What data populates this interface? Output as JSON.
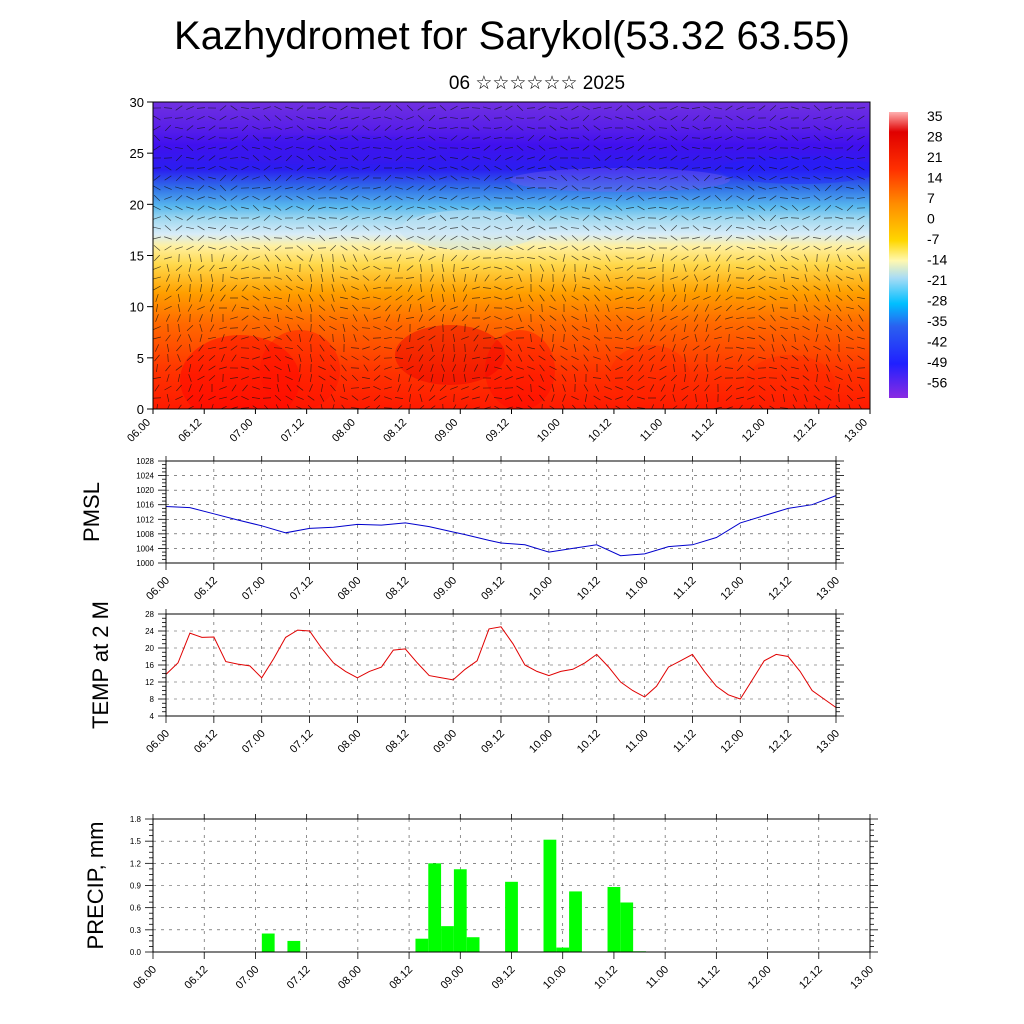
{
  "title": "Kazhydromet for Sarykol(53.32 63.55)",
  "subtitle": "06 ☆☆☆☆☆☆ 2025",
  "time_labels": [
    "06.00",
    "06.12",
    "07.00",
    "07.12",
    "08.00",
    "08.12",
    "09.00",
    "09.12",
    "10.00",
    "10.12",
    "11.00",
    "11.12",
    "12.00",
    "12.12",
    "13.00"
  ],
  "chart_data": [
    {
      "type": "heatmap",
      "title": "",
      "ylim": [
        0,
        30
      ],
      "y_ticks": [
        "0",
        "5",
        "10",
        "15",
        "20",
        "25",
        "30"
      ],
      "colorbar_labels": [
        "35",
        "28",
        "21",
        "14",
        "7",
        "0",
        "-7",
        "-14",
        "-21",
        "-28",
        "-35",
        "-42",
        "-49",
        "-56"
      ],
      "description_values": "temperature field with wind barbs; warm (red) near surface, cold (violet) aloft"
    },
    {
      "type": "line",
      "ylabel": "PMSL",
      "ylim": [
        1000,
        1028
      ],
      "y_ticks": [
        "1000",
        "1004",
        "1008",
        "1012",
        "1016",
        "1020",
        "1024",
        "1028"
      ],
      "x": [
        0,
        0.25,
        0.5,
        0.75,
        1.0,
        1.25,
        1.5,
        1.75,
        2.0,
        2.25,
        2.5,
        2.75,
        3.0,
        3.125,
        3.25,
        3.375,
        3.5,
        3.75,
        4.0,
        4.25,
        4.5,
        4.75,
        5.0,
        5.25,
        5.5,
        5.75,
        6.0,
        6.25,
        6.5,
        6.75,
        7.0
      ],
      "values": [
        1015.5,
        1015.2,
        1013.5,
        1011.8,
        1010.2,
        1008.3,
        1009.5,
        1009.8,
        1010.6,
        1010.4,
        1011.0,
        1010.0,
        1008.5,
        1007.8,
        1007.0,
        1006.2,
        1005.5,
        1005.0,
        1003.0,
        1004.0,
        1005.0,
        1002.0,
        1002.5,
        1004.5,
        1005.0,
        1007.0,
        1011.0,
        1013.0,
        1015.0,
        1016.0,
        1018.5
      ]
    },
    {
      "type": "line",
      "ylabel": "TEMP at 2 M",
      "ylim": [
        4,
        28
      ],
      "y_ticks": [
        "4",
        "8",
        "12",
        "16",
        "20",
        "24",
        "28"
      ],
      "x": [
        0,
        0.125,
        0.25,
        0.375,
        0.5,
        0.625,
        0.75,
        0.875,
        1.0,
        1.125,
        1.25,
        1.375,
        1.5,
        1.625,
        1.75,
        1.875,
        2.0,
        2.125,
        2.25,
        2.375,
        2.5,
        2.625,
        2.75,
        2.875,
        3.0,
        3.125,
        3.25,
        3.375,
        3.5,
        3.625,
        3.75,
        3.875,
        4.0,
        4.125,
        4.25,
        4.375,
        4.5,
        4.625,
        4.75,
        4.875,
        5.0,
        5.125,
        5.25,
        5.375,
        5.5,
        5.625,
        5.75,
        5.875,
        6.0,
        6.125,
        6.25,
        6.375,
        6.5,
        6.625,
        6.75,
        6.875,
        7.0
      ],
      "values": [
        13.8,
        16.5,
        23.5,
        22.5,
        22.6,
        16.8,
        16.2,
        15.8,
        13.0,
        17.5,
        22.5,
        24.2,
        24.0,
        20.0,
        16.5,
        14.5,
        13.0,
        14.5,
        15.5,
        19.5,
        19.8,
        16.5,
        13.5,
        13.0,
        12.5,
        15.0,
        17.0,
        24.5,
        25.0,
        21.0,
        16.0,
        14.5,
        13.5,
        14.5,
        15.0,
        16.5,
        18.5,
        15.5,
        12.0,
        10.0,
        8.5,
        11.0,
        15.5,
        17.0,
        18.5,
        14.5,
        11.0,
        9.0,
        8.0,
        12.5,
        17.0,
        18.5,
        18.0,
        14.5,
        10.0,
        8.0,
        6.0
      ]
    },
    {
      "type": "bar",
      "ylabel": "PRECIP, mm",
      "ylim": [
        0,
        1.8
      ],
      "y_ticks": [
        "0.0",
        "0.3",
        "0.6",
        "0.9",
        "1.2",
        "1.5",
        "1.8"
      ],
      "x": [
        1.125,
        1.375,
        2.625,
        2.75,
        2.875,
        3.0,
        3.125,
        3.5,
        3.875,
        4.0,
        4.125,
        4.5,
        4.625,
        4.75
      ],
      "values": [
        0.25,
        0.15,
        0.18,
        1.2,
        0.35,
        1.12,
        0.2,
        0.95,
        1.52,
        0.06,
        0.82,
        0.88,
        0.67,
        0.01
      ]
    }
  ]
}
